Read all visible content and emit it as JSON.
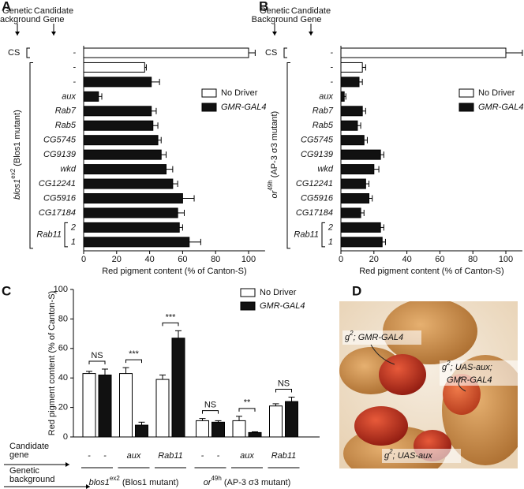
{
  "chart_data": [
    {
      "panel": "A",
      "type": "hbar",
      "column_headers": [
        [
          "Genetic",
          "Background"
        ],
        [
          "Candidate",
          "Gene"
        ]
      ],
      "control": "CS",
      "categories": [
        "-",
        "-",
        "-",
        "aux",
        "Rab7",
        "Rab5",
        "CG5745",
        "CG9139",
        "wkd",
        "CG12241",
        "CG5916",
        "CG17184",
        "2",
        "1"
      ],
      "group_label": "Rab11",
      "genotype": {
        "base": "blos1",
        "sup": "ex2",
        "rest": " (Blos1 mutant)"
      },
      "xlabel": "Red pigment content (% of Canton-S)",
      "xlim": [
        0,
        110
      ],
      "xticks": [
        0,
        20,
        40,
        60,
        80,
        100
      ],
      "series": [
        {
          "name": "No Driver",
          "color": "#ffffff",
          "values": [
            100,
            37,
            null,
            null,
            null,
            null,
            null,
            null,
            null,
            null,
            null,
            null,
            null,
            null
          ],
          "errors": [
            4,
            1,
            null,
            null,
            null,
            null,
            null,
            null,
            null,
            null,
            null,
            null,
            null,
            null
          ]
        },
        {
          "name": "GMR-GAL4",
          "color": "#111111",
          "values": [
            null,
            null,
            41,
            9,
            41,
            42,
            45,
            47,
            50,
            54,
            60,
            57,
            58,
            64
          ],
          "errors": [
            null,
            null,
            5,
            2,
            3,
            3,
            2,
            3,
            4,
            3,
            7,
            4,
            2,
            7
          ]
        }
      ]
    },
    {
      "panel": "B",
      "type": "hbar",
      "column_headers": [
        [
          "Genetic",
          "Background"
        ],
        [
          "Candidate",
          "Gene"
        ]
      ],
      "control": "CS",
      "categories": [
        "-",
        "-",
        "-",
        "aux",
        "Rab7",
        "Rab5",
        "CG5745",
        "CG9139",
        "wkd",
        "CG12241",
        "CG5916",
        "CG17184",
        "2",
        "1"
      ],
      "group_label": "Rab11",
      "genotype": {
        "base": "or",
        "sup": "49h",
        "rest": " (AP-3 σ3 mutant)"
      },
      "xlabel": "Red pigment content (% of Canton-S)",
      "xlim": [
        0,
        110
      ],
      "xticks": [
        0,
        20,
        40,
        60,
        80,
        100
      ],
      "series": [
        {
          "name": "No Driver",
          "color": "#ffffff",
          "values": [
            100,
            13,
            null,
            null,
            null,
            null,
            null,
            null,
            null,
            null,
            null,
            null,
            null,
            null
          ],
          "errors": [
            10,
            2,
            null,
            null,
            null,
            null,
            null,
            null,
            null,
            null,
            null,
            null,
            null,
            null
          ]
        },
        {
          "name": "GMR-GAL4",
          "color": "#111111",
          "values": [
            null,
            null,
            11,
            2,
            13,
            10,
            14,
            24,
            20,
            15,
            17,
            12,
            24,
            25
          ],
          "errors": [
            null,
            null,
            2,
            1,
            2,
            2,
            2,
            2,
            3,
            2,
            2,
            2,
            2,
            2
          ]
        }
      ]
    },
    {
      "panel": "C",
      "type": "bar",
      "ylabel": "Red pigment content (% of Canton-S)",
      "ylim": [
        0,
        100
      ],
      "yticks": [
        0,
        20,
        40,
        60,
        80,
        100
      ],
      "row_labels": [
        [
          "Candidate",
          "gene"
        ],
        [
          "Genetic",
          "background"
        ]
      ],
      "groups": [
        {
          "label": {
            "base": "blos1",
            "sup": "ex2",
            "rest": " (Blos1 mutant)"
          },
          "categories": [
            [
              "-",
              "-"
            ],
            [
              "aux"
            ],
            [
              "Rab11"
            ]
          ]
        },
        {
          "label": {
            "base": "or",
            "sup": "49h",
            "rest": " (AP-3 σ3 mutant)"
          },
          "categories": [
            [
              "-",
              "-"
            ],
            [
              "aux"
            ],
            [
              "Rab11"
            ]
          ]
        }
      ],
      "significance": [
        "NS",
        "***",
        "***",
        "NS",
        "**",
        "NS"
      ],
      "series": [
        {
          "name": "No Driver",
          "color": "#ffffff",
          "values": [
            43,
            43,
            39,
            11,
            11,
            21
          ],
          "errors": [
            1.5,
            4,
            3,
            1.5,
            3,
            1.5
          ]
        },
        {
          "name": "GMR-GAL4",
          "color": "#111111",
          "values": [
            42,
            8,
            67,
            10,
            3,
            24
          ],
          "errors": [
            4,
            2,
            5,
            1,
            0.5,
            3
          ]
        }
      ]
    }
  ],
  "photo": {
    "panel": "D",
    "labels": [
      {
        "base": "g",
        "sup": "2",
        "rest": "; GMR-GAL4"
      },
      {
        "base": "g",
        "sup": "2",
        "rest": "; UAS-aux;",
        "line2": "GMR-GAL4"
      },
      {
        "base": "g",
        "sup": "2",
        "rest": "; UAS-aux"
      }
    ]
  }
}
